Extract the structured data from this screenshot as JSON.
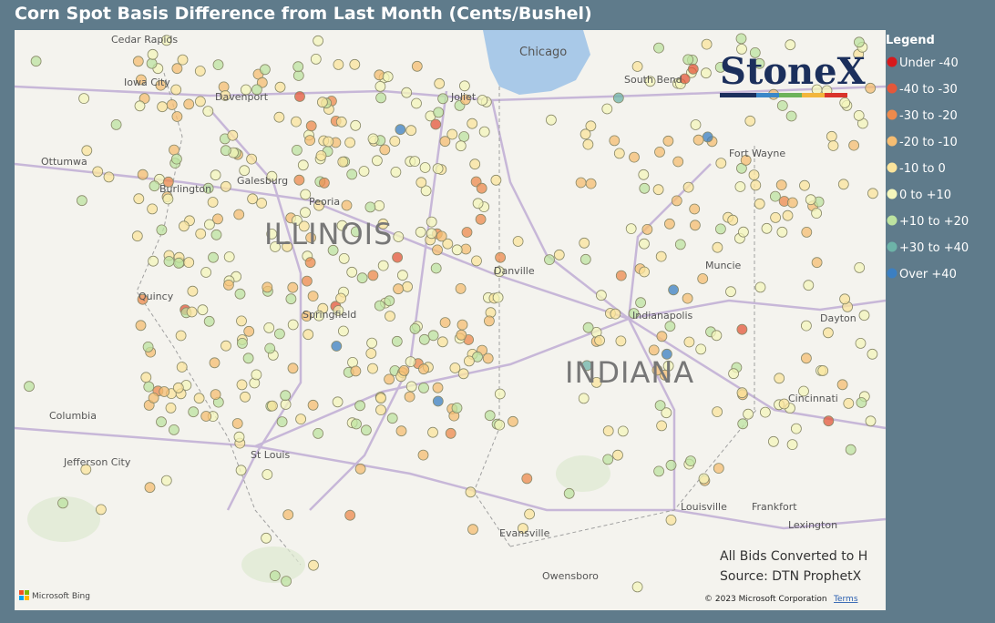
{
  "title": "Corn Spot Basis Difference from Last Month (Cents/Bushel)",
  "legend": {
    "title": "Legend",
    "entries": [
      {
        "label": "Under -40",
        "color": "#d7191c"
      },
      {
        "label": "-40 to -30",
        "color": "#e4573a"
      },
      {
        "label": "-30 to -20",
        "color": "#ee8a4c"
      },
      {
        "label": "-20 to -10",
        "color": "#f6bd72"
      },
      {
        "label": "-10 to 0",
        "color": "#fbe49c"
      },
      {
        "label": "0 to +10",
        "color": "#f4f6bb"
      },
      {
        "label": "+10 to +20",
        "color": "#bde3a0"
      },
      {
        "label": "+30 to +40",
        "color": "#6db3a8"
      },
      {
        "label": "Over +40",
        "color": "#3b7fc2"
      }
    ]
  },
  "logo": "StoneX",
  "map_labels": [
    "Cedar Rapids",
    "Iowa City",
    "Davenport",
    "Ottumwa",
    "Burlington",
    "Galesburg",
    "Peoria",
    "Quincy",
    "Springfield",
    "Columbia",
    "Jefferson City",
    "St Louis",
    "Chicago",
    "Joliet",
    "South Bend",
    "Fort Wayne",
    "Muncie",
    "Indianapolis",
    "Dayton",
    "Danville",
    "Cincinnati",
    "Louisville",
    "Frankfort",
    "Lexington",
    "Evansville",
    "Owensboro"
  ],
  "state_labels": [
    "ILLINOIS",
    "INDIANA"
  ],
  "notes": [
    "All Bids Converted to H",
    "Source: DTN ProphetX"
  ],
  "attribution": {
    "bing": "Microsoft Bing",
    "copyright": "© 2023 Microsoft Corporation",
    "terms": "Terms"
  }
}
